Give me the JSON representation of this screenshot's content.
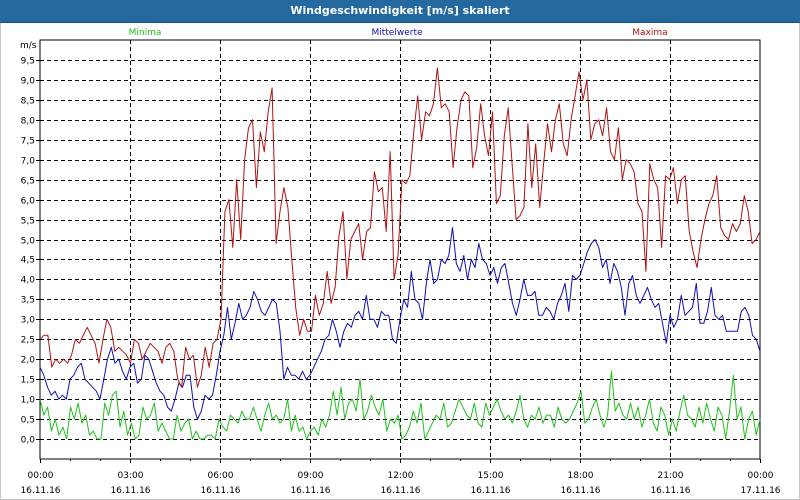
{
  "window": {
    "title": "Windgeschwindigkeit [m/s] skaliert"
  },
  "colors": {
    "minima": "#22c01e",
    "mittelwerte": "#1010b4",
    "maxima": "#b01414",
    "grid": "#000000",
    "titlebar": "#2468a0"
  },
  "chart_data": {
    "type": "line",
    "title": "Windgeschwindigkeit [m/s] skaliert",
    "ylabel": "m/s",
    "xlabel": "",
    "ylim": [
      -0.5,
      10.0
    ],
    "yticks": [
      0.0,
      0.5,
      1.0,
      1.5,
      2.0,
      2.5,
      3.0,
      3.5,
      4.0,
      4.5,
      5.0,
      5.5,
      6.0,
      6.5,
      7.0,
      7.5,
      8.0,
      8.5,
      9.0,
      9.5
    ],
    "ytick_labels": [
      "0,0",
      "0,5",
      "1,0",
      "1,5",
      "2,0",
      "2,5",
      "3,0",
      "3,5",
      "4,0",
      "4,5",
      "5,0",
      "5,5",
      "6,0",
      "6,5",
      "7,0",
      "7,5",
      "8,0",
      "8,5",
      "9,0",
      "9,5"
    ],
    "xlim": [
      0,
      24
    ],
    "xticks": [
      {
        "time": "00:00",
        "date": "16.11.16"
      },
      {
        "time": "03:00",
        "date": "16.11.16"
      },
      {
        "time": "06:00",
        "date": "16.11.16"
      },
      {
        "time": "09:00",
        "date": "16.11.16"
      },
      {
        "time": "12:00",
        "date": "16.11.16"
      },
      {
        "time": "15:00",
        "date": "16.11.16"
      },
      {
        "time": "18:00",
        "date": "16.11.16"
      },
      {
        "time": "21:00",
        "date": "16.11.16"
      },
      {
        "time": "00:00",
        "date": "17.11.16"
      }
    ],
    "grid": true,
    "legend_position": "top",
    "legend": [
      "Minima",
      "Mittelwerte",
      "Maxima"
    ],
    "series": [
      {
        "name": "Minima",
        "color": "#22c01e",
        "values": [
          1.0,
          0.6,
          0.8,
          0.2,
          0.5,
          0.1,
          0.3,
          0.0,
          0.8,
          0.5,
          0.9,
          0.4,
          0.6,
          0.1,
          0.2,
          0.0,
          0.0,
          0.9,
          0.6,
          1.1,
          1.2,
          0.3,
          0.7,
          0.1,
          0.4,
          0.0,
          0.1,
          0.8,
          0.5,
          0.6,
          0.9,
          0.2,
          0.4,
          0.2,
          0.0,
          0.0,
          0.6,
          0.2,
          0.4,
          0.5,
          0.0,
          0.2,
          0.0,
          0.0,
          0.1,
          0.1,
          0.0,
          0.5,
          0.3,
          0.2,
          0.6,
          0.5,
          0.4,
          0.7,
          0.5,
          0.5,
          0.8,
          0.5,
          0.2,
          0.6,
          0.9,
          0.5,
          0.6,
          0.4,
          0.5,
          1.0,
          0.2,
          0.6,
          0.2,
          0.3,
          0.0,
          0.2,
          0.3,
          0.1,
          0.5,
          0.3,
          0.6,
          1.2,
          0.6,
          1.3,
          0.5,
          0.9,
          1.0,
          0.7,
          1.5,
          0.5,
          0.7,
          1.1,
          0.8,
          0.6,
          1.0,
          0.2,
          0.5,
          0.4,
          0.6,
          0.0,
          0.1,
          0.3,
          0.7,
          0.4,
          0.9,
          0.0,
          0.2,
          0.4,
          0.6,
          0.5,
          0.9,
          0.3,
          0.4,
          0.7,
          1.0,
          0.8,
          0.6,
          0.5,
          0.9,
          0.4,
          0.3,
          0.9,
          0.6,
          0.8,
          1.0,
          0.7,
          0.5,
          0.6,
          0.4,
          0.7,
          1.1,
          0.5,
          0.3,
          0.6,
          0.5,
          0.8,
          0.4,
          0.6,
          0.6,
          0.3,
          0.8,
          0.5,
          0.4,
          0.5,
          0.7,
          0.9,
          1.2,
          0.4,
          0.5,
          0.8,
          1.0,
          0.6,
          0.3,
          0.6,
          1.7,
          0.7,
          0.9,
          0.6,
          0.5,
          0.9,
          0.5,
          0.8,
          0.3,
          0.6,
          1.0,
          0.4,
          0.2,
          0.8,
          0.6,
          0.1,
          0.5,
          0.2,
          0.7,
          1.1,
          0.6,
          0.5,
          0.3,
          0.8,
          0.4,
          0.9,
          0.5,
          0.2,
          0.8,
          0.6,
          0.0,
          0.7,
          1.6,
          0.5,
          0.8,
          0.0,
          0.5,
          0.7,
          0.1,
          0.5
        ]
      },
      {
        "name": "Mittelwerte",
        "color": "#1010b4",
        "values": [
          1.8,
          1.6,
          1.3,
          1.1,
          1.2,
          1.0,
          1.1,
          1.0,
          1.5,
          1.6,
          1.8,
          1.9,
          1.5,
          1.4,
          1.3,
          1.2,
          1.0,
          1.5,
          2.0,
          2.3,
          1.9,
          2.0,
          1.7,
          1.5,
          1.8,
          1.9,
          1.4,
          1.5,
          2.1,
          2.0,
          1.7,
          1.4,
          1.2,
          1.1,
          0.8,
          0.7,
          1.0,
          1.4,
          1.3,
          1.6,
          1.6,
          0.8,
          0.5,
          0.7,
          1.1,
          1.0,
          1.1,
          1.6,
          2.2,
          2.6,
          3.3,
          2.5,
          2.9,
          3.4,
          3.0,
          3.1,
          3.3,
          3.7,
          3.5,
          3.2,
          3.1,
          3.3,
          3.5,
          3.4,
          2.7,
          1.5,
          1.8,
          1.6,
          1.6,
          1.5,
          1.7,
          1.5,
          1.6,
          1.8,
          2.0,
          2.2,
          2.5,
          2.6,
          3.0,
          2.7,
          2.3,
          2.7,
          2.9,
          2.8,
          3.1,
          3.2,
          3.0,
          3.6,
          3.0,
          3.0,
          2.8,
          3.2,
          3.1,
          3.1,
          2.5,
          2.4,
          3.0,
          3.5,
          3.3,
          4.2,
          3.5,
          3.4,
          3.0,
          3.9,
          4.5,
          3.9,
          4.0,
          4.5,
          4.4,
          4.6,
          5.3,
          4.4,
          4.2,
          4.6,
          4.0,
          4.5,
          4.3,
          4.9,
          4.5,
          4.4,
          4.1,
          4.3,
          3.9,
          4.3,
          4.4,
          3.9,
          3.4,
          3.1,
          3.5,
          4.0,
          3.6,
          3.6,
          3.7,
          3.1,
          3.1,
          3.3,
          3.2,
          3.0,
          3.4,
          3.6,
          3.9,
          3.2,
          4.1,
          4.0,
          4.1,
          4.4,
          4.7,
          4.9,
          5.0,
          4.8,
          4.3,
          4.5,
          3.9,
          4.4,
          4.2,
          3.8,
          3.1,
          3.9,
          4.1,
          3.6,
          3.4,
          3.6,
          3.8,
          3.5,
          3.3,
          3.4,
          2.9,
          2.4,
          3.1,
          2.8,
          3.0,
          3.6,
          3.1,
          3.2,
          3.3,
          3.9,
          2.9,
          2.9,
          3.2,
          3.8,
          3.1,
          3.0,
          3.1,
          2.7,
          2.7,
          2.7,
          2.7,
          3.2,
          3.3,
          3.1,
          2.6,
          2.5,
          2.2
        ]
      },
      {
        "name": "Maxima",
        "color": "#b01414",
        "values": [
          2.5,
          2.6,
          2.6,
          1.8,
          2.0,
          1.9,
          2.0,
          1.9,
          2.1,
          2.5,
          2.4,
          2.6,
          2.8,
          2.6,
          2.4,
          1.9,
          2.5,
          3.0,
          2.8,
          2.2,
          2.3,
          2.2,
          2.1,
          1.9,
          2.5,
          2.4,
          2.0,
          2.2,
          2.4,
          2.3,
          2.2,
          1.9,
          2.3,
          2.4,
          2.2,
          1.5,
          1.3,
          2.3,
          2.0,
          2.1,
          1.3,
          1.6,
          2.3,
          1.8,
          2.4,
          2.5,
          3.0,
          5.7,
          6.0,
          4.8,
          6.5,
          5.0,
          7.0,
          7.8,
          8.0,
          6.3,
          7.7,
          7.2,
          8.2,
          8.8,
          4.9,
          5.7,
          6.3,
          5.8,
          4.5,
          3.3,
          2.6,
          3.0,
          2.7,
          2.7,
          3.6,
          3.1,
          3.4,
          4.2,
          3.4,
          3.8,
          5.1,
          5.7,
          4.0,
          5.0,
          5.2,
          5.4,
          4.5,
          5.2,
          5.3,
          6.7,
          6.2,
          6.3,
          5.2,
          7.2,
          4.0,
          4.6,
          6.5,
          6.4,
          6.6,
          7.7,
          8.6,
          7.5,
          8.2,
          8.1,
          8.4,
          9.3,
          8.3,
          8.4,
          8.2,
          6.8,
          7.8,
          8.5,
          8.7,
          8.6,
          6.8,
          7.3,
          8.4,
          7.6,
          7.1,
          8.2,
          5.9,
          6.1,
          7.6,
          8.3,
          6.9,
          5.5,
          5.6,
          5.8,
          7.9,
          6.3,
          7.4,
          5.8,
          6.9,
          7.9,
          7.2,
          8.0,
          8.4,
          7.4,
          7.1,
          8.0,
          8.6,
          9.2,
          8.5,
          9.0,
          7.5,
          7.9,
          8.0,
          7.6,
          8.3,
          7.2,
          7.0,
          7.8,
          6.5,
          7.0,
          6.9,
          6.7,
          5.9,
          5.7,
          4.2,
          6.9,
          6.5,
          6.3,
          4.8,
          6.6,
          6.5,
          6.8,
          5.9,
          6.5,
          6.6,
          5.2,
          4.7,
          4.3,
          5.0,
          5.5,
          5.9,
          6.1,
          6.6,
          5.3,
          5.1,
          5.0,
          5.4,
          5.2,
          5.4,
          6.1,
          5.7,
          4.9,
          5.0,
          5.2
        ]
      }
    ]
  }
}
